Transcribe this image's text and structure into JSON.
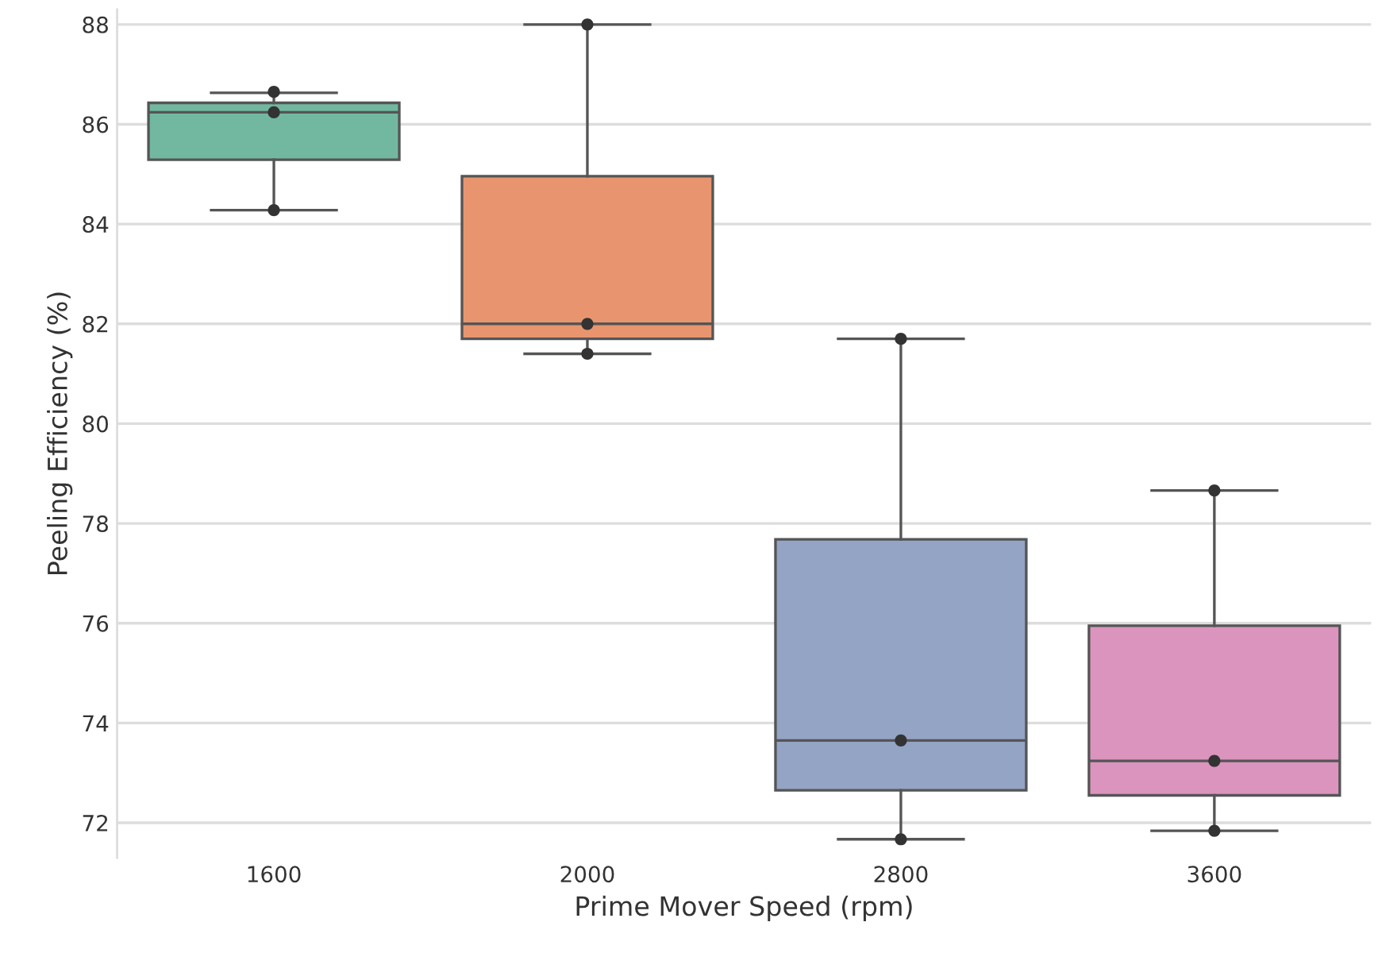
{
  "chart_data": {
    "type": "box",
    "xlabel": "Prime Mover Speed (rpm)",
    "ylabel": "Peeling Efficiency (%)",
    "categories": [
      "1600",
      "2000",
      "2800",
      "3600"
    ],
    "colors": [
      "#72b8a0",
      "#e8956f",
      "#94a4c4",
      "#db94bd"
    ],
    "boxes": [
      {
        "low": 84.28,
        "q1": 85.29,
        "median": 86.24,
        "q3": 86.43,
        "high": 86.63
      },
      {
        "low": 81.4,
        "q1": 81.7,
        "median": 82.0,
        "q3": 84.96,
        "high": 88.0
      },
      {
        "low": 71.67,
        "q1": 72.65,
        "median": 73.65,
        "q3": 77.68,
        "high": 81.7
      },
      {
        "low": 71.84,
        "q1": 72.55,
        "median": 73.24,
        "q3": 75.95,
        "high": 78.66
      }
    ],
    "series": [
      {
        "type": "scatter",
        "color": "#333333",
        "values": [
          86.65,
          88.0,
          81.7,
          78.66
        ]
      },
      {
        "type": "scatter",
        "color": "#333333",
        "values": [
          86.24,
          82.0,
          73.65,
          73.24
        ]
      },
      {
        "type": "scatter",
        "color": "#333333",
        "values": [
          84.28,
          81.4,
          71.67,
          71.84
        ]
      }
    ],
    "ylim": [
      71.3,
      88.3
    ],
    "yticks": [
      72,
      74,
      76,
      78,
      80,
      82,
      84,
      86,
      88
    ],
    "grid": "y",
    "marker": "circle"
  }
}
